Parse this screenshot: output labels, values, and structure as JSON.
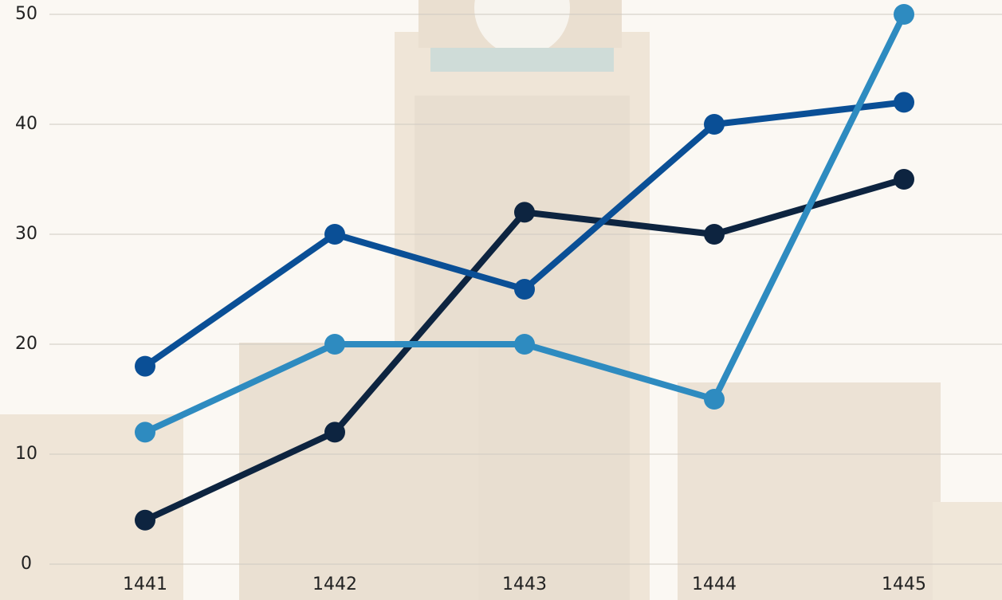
{
  "chart_data": {
    "type": "line",
    "categories": [
      "1441",
      "1442",
      "1443",
      "1444",
      "1445"
    ],
    "series": [
      {
        "color": "#0d2440",
        "values": [
          4,
          12,
          32,
          30,
          35
        ]
      },
      {
        "color": "#0a4f96",
        "values": [
          18,
          30,
          25,
          40,
          42
        ]
      },
      {
        "color": "#2e8bc0",
        "values": [
          12,
          20,
          20,
          15,
          50
        ]
      }
    ],
    "ylim": [
      0,
      50
    ],
    "yticks": [
      0,
      10,
      20,
      30,
      40,
      50
    ],
    "grid": true
  }
}
